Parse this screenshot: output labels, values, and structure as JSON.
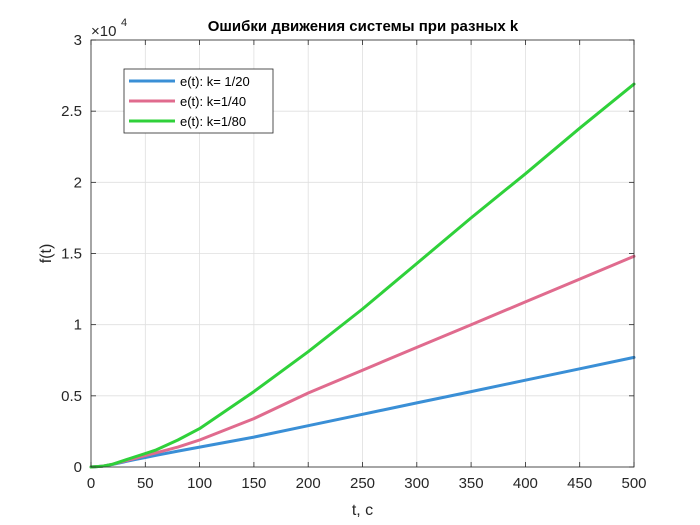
{
  "chart_data": {
    "type": "line",
    "title": "Ошибки движения системы при разных k",
    "xlabel": "t, c",
    "ylabel": "f(t)",
    "xlim": [
      0,
      500
    ],
    "ylim": [
      0,
      3
    ],
    "xticks": [
      0,
      50,
      100,
      150,
      200,
      250,
      300,
      350,
      400,
      450,
      500
    ],
    "yticks": [
      0,
      0.5,
      1,
      1.5,
      2,
      2.5,
      3
    ],
    "ytick_labels": [
      "0",
      "0.5",
      "1",
      "1.5",
      "2",
      "2.5",
      "3"
    ],
    "y_multiplier": {
      "base": "×10",
      "exponent": "4"
    },
    "grid": true,
    "legend_position": "top-left",
    "x": [
      0,
      10,
      20,
      30,
      40,
      50,
      60,
      80,
      100,
      150,
      200,
      250,
      300,
      350,
      400,
      450,
      500
    ],
    "series": [
      {
        "name": "e(t): k= 1/20",
        "color": "#3a8fd6",
        "values": [
          0,
          0.005,
          0.018,
          0.035,
          0.052,
          0.067,
          0.082,
          0.112,
          0.14,
          0.21,
          0.29,
          0.37,
          0.45,
          0.53,
          0.61,
          0.69,
          0.77
        ]
      },
      {
        "name": "e(t): k=1/40",
        "color": "#e06b8e",
        "values": [
          0,
          0.005,
          0.02,
          0.04,
          0.06,
          0.08,
          0.1,
          0.14,
          0.19,
          0.34,
          0.52,
          0.68,
          0.84,
          1.0,
          1.16,
          1.32,
          1.48
        ]
      },
      {
        "name": "e(t): k=1/80",
        "color": "#2fd13a",
        "values": [
          0,
          0.005,
          0.02,
          0.045,
          0.07,
          0.095,
          0.12,
          0.19,
          0.27,
          0.53,
          0.81,
          1.11,
          1.43,
          1.75,
          2.06,
          2.38,
          2.69
        ]
      }
    ]
  }
}
